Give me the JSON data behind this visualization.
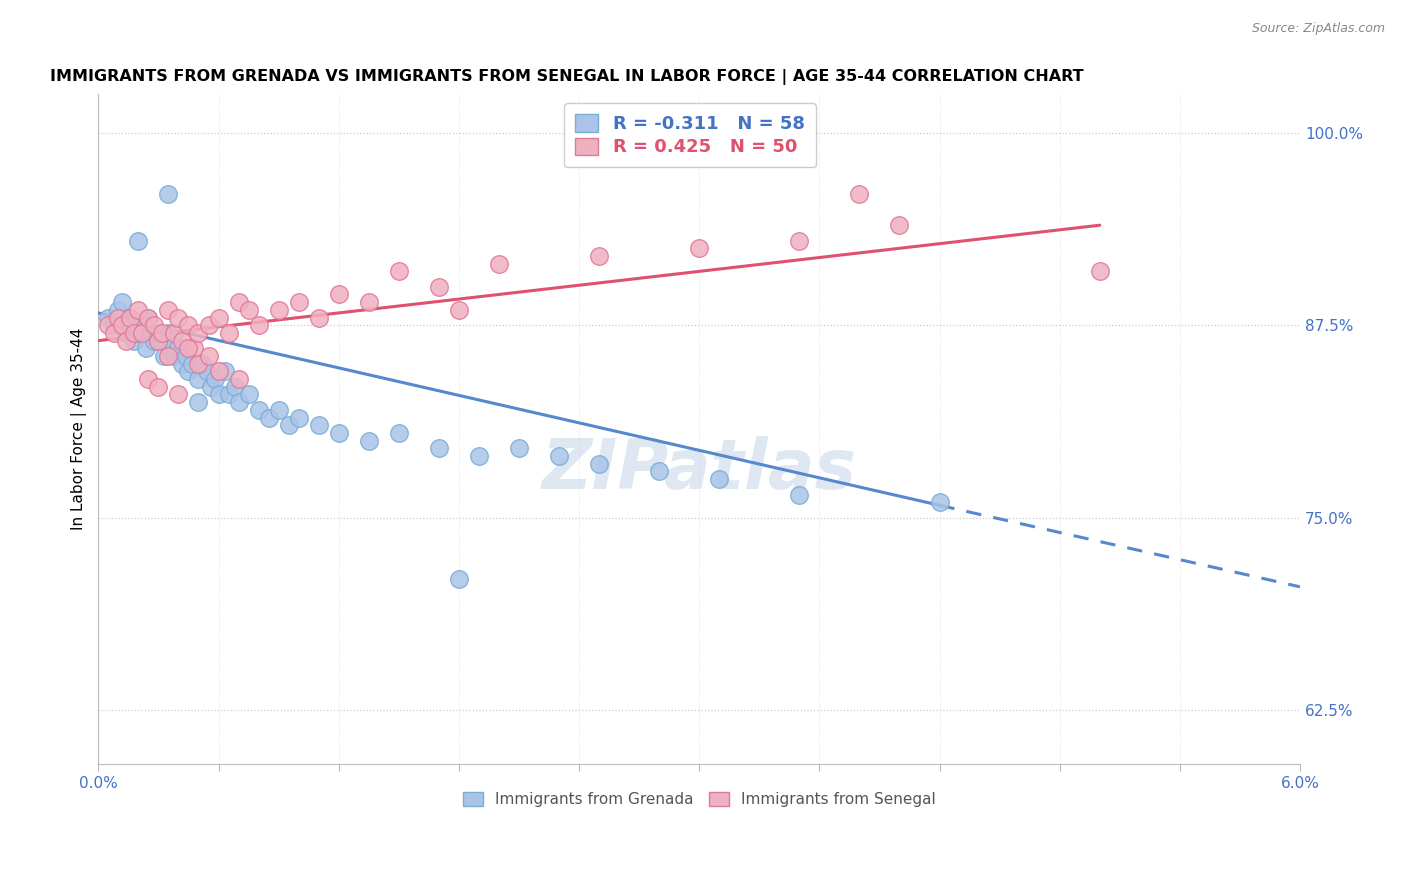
{
  "title": "IMMIGRANTS FROM GRENADA VS IMMIGRANTS FROM SENEGAL IN LABOR FORCE | AGE 35-44 CORRELATION CHART",
  "source": "Source: ZipAtlas.com",
  "xmin": 0.0,
  "xmax": 6.0,
  "ymin": 59.0,
  "ymax": 102.5,
  "color_grenada_fill": "#aac4e8",
  "color_grenada_edge": "#7aadd4",
  "color_senegal_fill": "#f0b0c0",
  "color_senegal_edge": "#e07898",
  "color_grenada_line": "#5588cc",
  "color_senegal_line": "#e05070",
  "color_blue_text": "#4472c4",
  "color_pink_text": "#e05070",
  "watermark_text": "ZIPatlas",
  "watermark_color": "#c8d8ea",
  "yticks": [
    62.5,
    75.0,
    87.5,
    100.0
  ],
  "xticks": [
    0.0,
    0.6,
    1.2,
    1.8,
    2.4,
    3.0,
    3.6,
    4.2,
    4.8,
    5.4,
    6.0
  ],
  "grenada_x": [
    0.05,
    0.08,
    0.1,
    0.12,
    0.14,
    0.15,
    0.16,
    0.18,
    0.2,
    0.22,
    0.24,
    0.25,
    0.27,
    0.28,
    0.3,
    0.32,
    0.33,
    0.35,
    0.36,
    0.38,
    0.4,
    0.42,
    0.44,
    0.45,
    0.47,
    0.5,
    0.52,
    0.54,
    0.56,
    0.58,
    0.6,
    0.63,
    0.65,
    0.68,
    0.7,
    0.75,
    0.8,
    0.85,
    0.9,
    0.95,
    1.0,
    1.1,
    1.2,
    1.35,
    1.5,
    1.7,
    1.9,
    2.1,
    2.3,
    2.5,
    2.8,
    3.1,
    3.5,
    4.2,
    0.2,
    0.35,
    0.5,
    1.8
  ],
  "grenada_y": [
    88.0,
    87.5,
    88.5,
    89.0,
    87.0,
    88.0,
    87.5,
    86.5,
    87.0,
    87.5,
    86.0,
    88.0,
    87.0,
    86.5,
    87.0,
    86.5,
    85.5,
    87.0,
    86.0,
    85.5,
    86.0,
    85.0,
    85.5,
    84.5,
    85.0,
    84.0,
    85.0,
    84.5,
    83.5,
    84.0,
    83.0,
    84.5,
    83.0,
    83.5,
    82.5,
    83.0,
    82.0,
    81.5,
    82.0,
    81.0,
    81.5,
    81.0,
    80.5,
    80.0,
    80.5,
    79.5,
    79.0,
    79.5,
    79.0,
    78.5,
    78.0,
    77.5,
    76.5,
    76.0,
    93.0,
    96.0,
    82.5,
    71.0
  ],
  "senegal_x": [
    0.05,
    0.08,
    0.1,
    0.12,
    0.14,
    0.16,
    0.18,
    0.2,
    0.22,
    0.25,
    0.28,
    0.3,
    0.32,
    0.35,
    0.38,
    0.4,
    0.42,
    0.45,
    0.48,
    0.5,
    0.55,
    0.6,
    0.65,
    0.7,
    0.75,
    0.8,
    0.9,
    1.0,
    1.1,
    1.2,
    1.35,
    1.5,
    1.7,
    0.25,
    0.3,
    0.4,
    0.5,
    0.6,
    0.7,
    0.35,
    0.45,
    0.55,
    2.0,
    2.5,
    3.0,
    3.5,
    4.0,
    5.0,
    3.8,
    1.8
  ],
  "senegal_y": [
    87.5,
    87.0,
    88.0,
    87.5,
    86.5,
    88.0,
    87.0,
    88.5,
    87.0,
    88.0,
    87.5,
    86.5,
    87.0,
    88.5,
    87.0,
    88.0,
    86.5,
    87.5,
    86.0,
    87.0,
    87.5,
    88.0,
    87.0,
    89.0,
    88.5,
    87.5,
    88.5,
    89.0,
    88.0,
    89.5,
    89.0,
    91.0,
    90.0,
    84.0,
    83.5,
    83.0,
    85.0,
    84.5,
    84.0,
    85.5,
    86.0,
    85.5,
    91.5,
    92.0,
    92.5,
    93.0,
    94.0,
    91.0,
    96.0,
    88.5
  ],
  "grenada_line_x0": 0.0,
  "grenada_line_y0": 88.3,
  "grenada_line_x1": 4.2,
  "grenada_line_y1": 75.8,
  "grenada_dash_x0": 4.2,
  "grenada_dash_y0": 75.8,
  "grenada_dash_x1": 6.0,
  "grenada_dash_y1": 70.5,
  "senegal_line_x0": 0.0,
  "senegal_line_y0": 86.5,
  "senegal_line_x1": 5.0,
  "senegal_line_y1": 94.0
}
